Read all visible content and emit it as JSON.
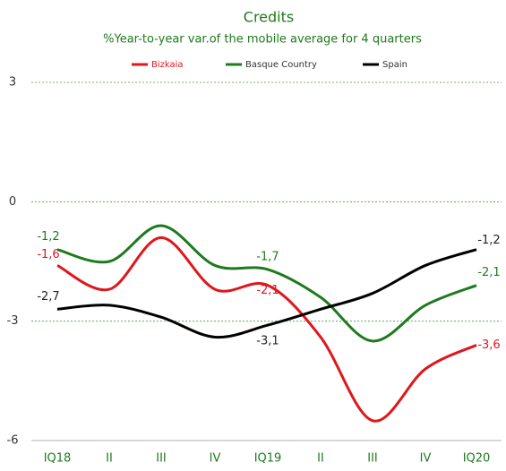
{
  "chart_data": {
    "type": "line",
    "title": "Credits",
    "subtitle": "%Year-to-year var.of the mobile average for 4 quarters",
    "categories": [
      "IQ18",
      "II",
      "III",
      "IV",
      "IQ19",
      "II",
      "III",
      "IV",
      "IQ20"
    ],
    "series": [
      {
        "name": "Bizkaia",
        "color": "#e0161c",
        "values": [
          -1.6,
          -2.2,
          -0.9,
          -2.2,
          -2.1,
          -3.4,
          -5.5,
          -4.2,
          -3.6
        ],
        "value_labels": [
          "-1,6",
          null,
          null,
          null,
          "-2,1",
          null,
          null,
          null,
          "-3,6"
        ]
      },
      {
        "name": "Basque Country",
        "color": "#1e7a1e",
        "values": [
          -1.2,
          -1.5,
          -0.6,
          -1.6,
          -1.7,
          -2.4,
          -3.5,
          -2.6,
          -2.1
        ],
        "value_labels": [
          "-1,2",
          null,
          null,
          null,
          "-1,7",
          null,
          null,
          null,
          "-2,1"
        ]
      },
      {
        "name": "Spain",
        "color": "#000000",
        "values": [
          -2.7,
          -2.6,
          -2.9,
          -3.4,
          -3.1,
          -2.7,
          -2.3,
          -1.6,
          -1.2
        ],
        "value_labels": [
          "-2,7",
          null,
          null,
          null,
          "-3,1",
          null,
          null,
          null,
          "-1,2"
        ]
      }
    ],
    "ylim": [
      -6,
      3
    ],
    "yticks": [
      -6,
      -3,
      0,
      3
    ],
    "grid": true,
    "smooth": true,
    "legend": "top"
  }
}
